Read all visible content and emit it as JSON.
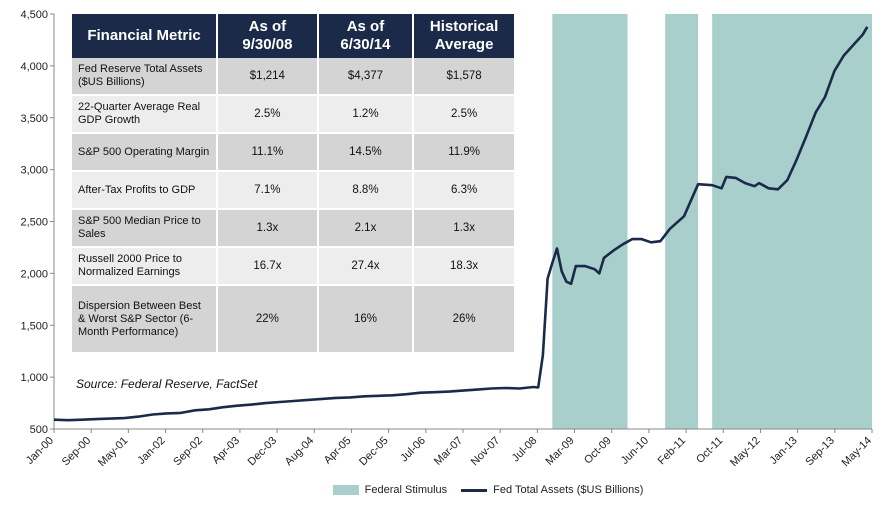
{
  "chart_data": {
    "type": "line",
    "x_labels": [
      "Jan-00",
      "Sep-00",
      "May-01",
      "Jan-02",
      "Sep-02",
      "Apr-03",
      "Dec-03",
      "Aug-04",
      "Apr-05",
      "Dec-05",
      "Jul-06",
      "Mar-07",
      "Nov-07",
      "Jul-08",
      "Mar-09",
      "Oct-09",
      "Jun-10",
      "Feb-11",
      "Oct-11",
      "May-12",
      "Jan-13",
      "Sep-13",
      "May-14"
    ],
    "y_ticks": [
      "500",
      "1,000",
      "1,500",
      "2,000",
      "2,500",
      "3,000",
      "3,500",
      "4,000",
      "4,500"
    ],
    "ylim": [
      500,
      4500
    ],
    "xlim": [
      "2000-01",
      "2014-07"
    ],
    "grid": false,
    "legend_position": "bottom",
    "shaded_periods": [
      {
        "start": "2008-11",
        "end": "2010-03"
      },
      {
        "start": "2010-11",
        "end": "2011-06"
      },
      {
        "start": "2011-09",
        "end": "2014-07"
      }
    ],
    "series": [
      {
        "name": "Fed Total Assets ($US Billions)",
        "color": "#1c2a4a",
        "points": [
          [
            "2000-01",
            590
          ],
          [
            "2000-04",
            585
          ],
          [
            "2000-07",
            590
          ],
          [
            "2000-10",
            595
          ],
          [
            "2001-01",
            600
          ],
          [
            "2001-04",
            605
          ],
          [
            "2001-07",
            620
          ],
          [
            "2001-10",
            640
          ],
          [
            "2002-01",
            650
          ],
          [
            "2002-04",
            655
          ],
          [
            "2002-07",
            680
          ],
          [
            "2002-10",
            690
          ],
          [
            "2003-01",
            710
          ],
          [
            "2003-04",
            725
          ],
          [
            "2003-07",
            735
          ],
          [
            "2003-10",
            750
          ],
          [
            "2004-01",
            760
          ],
          [
            "2004-04",
            770
          ],
          [
            "2004-07",
            780
          ],
          [
            "2004-10",
            790
          ],
          [
            "2005-01",
            800
          ],
          [
            "2005-04",
            805
          ],
          [
            "2005-07",
            815
          ],
          [
            "2005-10",
            820
          ],
          [
            "2006-01",
            825
          ],
          [
            "2006-04",
            835
          ],
          [
            "2006-07",
            850
          ],
          [
            "2006-10",
            855
          ],
          [
            "2007-01",
            860
          ],
          [
            "2007-04",
            870
          ],
          [
            "2007-07",
            880
          ],
          [
            "2007-10",
            890
          ],
          [
            "2008-01",
            895
          ],
          [
            "2008-04",
            890
          ],
          [
            "2008-07",
            905
          ],
          [
            "2008-08",
            900
          ],
          [
            "2008-09",
            1214
          ],
          [
            "2008-10",
            1950
          ],
          [
            "2008-11",
            2100
          ],
          [
            "2008-12",
            2240
          ],
          [
            "2009-01",
            2020
          ],
          [
            "2009-02",
            1920
          ],
          [
            "2009-03",
            1900
          ],
          [
            "2009-04",
            2070
          ],
          [
            "2009-06",
            2070
          ],
          [
            "2009-08",
            2040
          ],
          [
            "2009-09",
            2000
          ],
          [
            "2009-10",
            2150
          ],
          [
            "2009-12",
            2220
          ],
          [
            "2010-02",
            2280
          ],
          [
            "2010-04",
            2330
          ],
          [
            "2010-06",
            2330
          ],
          [
            "2010-08",
            2300
          ],
          [
            "2010-10",
            2310
          ],
          [
            "2010-12",
            2430
          ],
          [
            "2011-03",
            2550
          ],
          [
            "2011-06",
            2860
          ],
          [
            "2011-09",
            2850
          ],
          [
            "2011-11",
            2820
          ],
          [
            "2011-12",
            2930
          ],
          [
            "2012-02",
            2920
          ],
          [
            "2012-04",
            2870
          ],
          [
            "2012-06",
            2840
          ],
          [
            "2012-07",
            2870
          ],
          [
            "2012-09",
            2820
          ],
          [
            "2012-11",
            2810
          ],
          [
            "2013-01",
            2900
          ],
          [
            "2013-03",
            3100
          ],
          [
            "2013-05",
            3320
          ],
          [
            "2013-07",
            3550
          ],
          [
            "2013-09",
            3700
          ],
          [
            "2013-11",
            3950
          ],
          [
            "2014-01",
            4100
          ],
          [
            "2014-03",
            4200
          ],
          [
            "2014-05",
            4300
          ],
          [
            "2014-06",
            4377
          ]
        ]
      }
    ],
    "table": {
      "headers": [
        "Financial Metric",
        "As of 9/30/08",
        "As of 6/30/14",
        "Historical Average"
      ],
      "rows": [
        [
          "Fed Reserve Total Assets ($US Billions)",
          "$1,214",
          "$4,377",
          "$1,578"
        ],
        [
          "22-Quarter Average Real GDP Growth",
          "2.5%",
          "1.2%",
          "2.5%"
        ],
        [
          "S&P 500 Operating Margin",
          "11.1%",
          "14.5%",
          "11.9%"
        ],
        [
          "After-Tax  Profits to GDP",
          "7.1%",
          "8.8%",
          "6.3%"
        ],
        [
          "S&P 500 Median Price to Sales",
          "1.3x",
          "2.1x",
          "1.3x"
        ],
        [
          "Russell 2000 Price to Normalized Earnings",
          "16.7x",
          "27.4x",
          "18.3x"
        ],
        [
          "Dispersion Between Best & Worst S&P Sector (6-Month Performance)",
          "22%",
          "16%",
          "26%"
        ]
      ]
    },
    "source": "Source: Federal Reserve,  FactSet"
  },
  "legend": {
    "stimulus_label": "Federal Stimulus",
    "stimulus_color": "#a9cfcc",
    "line_label": "Fed Total Assets ($US Billions)",
    "line_color": "#1c2a4a"
  }
}
